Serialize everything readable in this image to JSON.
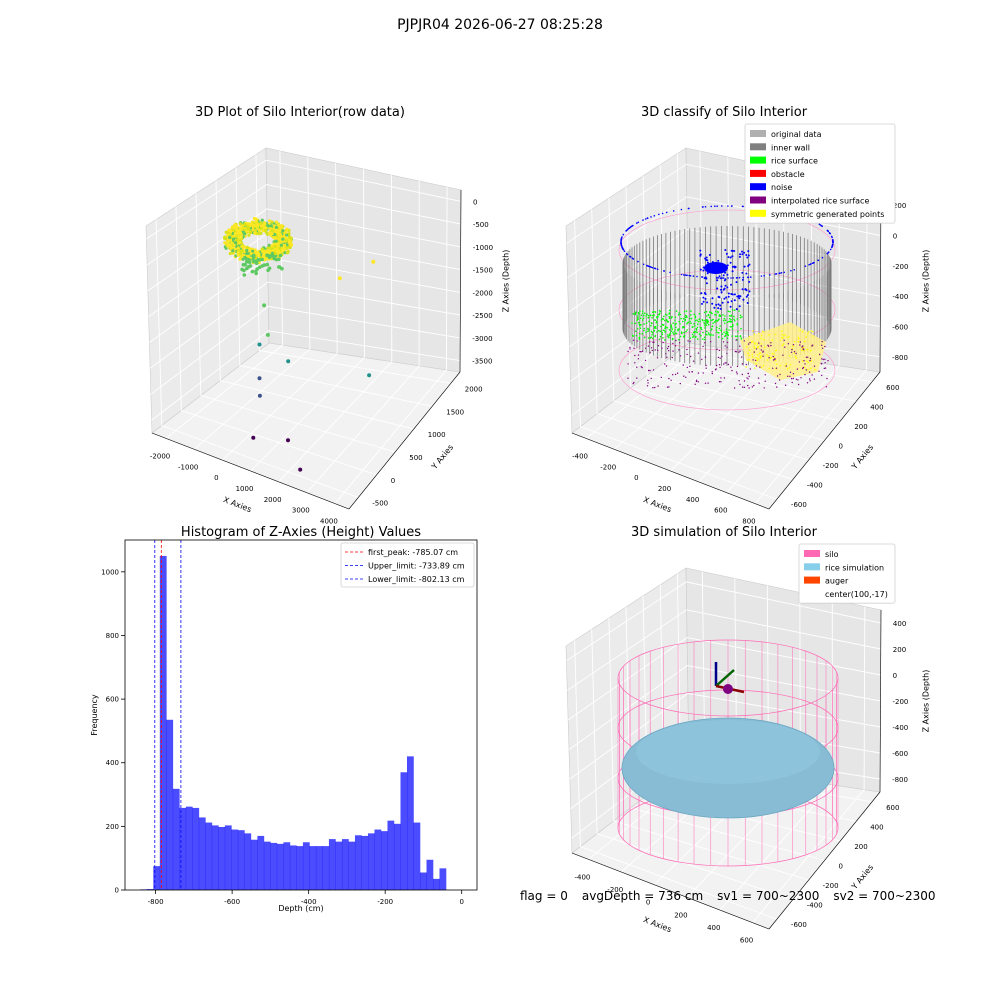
{
  "figure_title": "PJPJR04 2026-06-27 08:25:28",
  "status_bar": {
    "flag": "flag = 0",
    "avg_depth": "avgDepth = 736 cm",
    "sv1": "sv1 = 700~2300",
    "sv2": "sv2 = 700~2300"
  },
  "chart_data": [
    {
      "type": "scatter",
      "projection": "3d",
      "title": "3D Plot of Silo Interior(row data)",
      "xlabel": "X Axies",
      "ylabel": "Y Axies",
      "zlabel": "Z Axies (Depth)",
      "xticks": [
        "-2000",
        "-1000",
        "0",
        "1000",
        "2000",
        "3000",
        "4000"
      ],
      "yticks": [
        "-500",
        "0",
        "500",
        "1000",
        "1500",
        "2000"
      ],
      "zticks": [
        "0",
        "-500",
        "-1000",
        "-1500",
        "-2000",
        "-2500",
        "-3000",
        "-3500"
      ],
      "colormap": [
        "#440154",
        "#3b528b",
        "#21918c",
        "#5ec962",
        "#fde725"
      ],
      "outlier_points": [
        {
          "x": 2100,
          "y": 900,
          "z": -1000
        },
        {
          "x": 2900,
          "y": 1200,
          "z": -800
        },
        {
          "x": 3500,
          "y": 600,
          "z": -2600
        },
        {
          "x": 1600,
          "y": -100,
          "z": -2000
        },
        {
          "x": 200,
          "y": 300,
          "z": -1400
        },
        {
          "x": 600,
          "y": 100,
          "z": -1800
        },
        {
          "x": -300,
          "y": 500,
          "z": -2500
        },
        {
          "x": 400,
          "y": 0,
          "z": -2700
        },
        {
          "x": 100,
          "y": 200,
          "z": -3300
        },
        {
          "x": 700,
          "y": -400,
          "z": -3600
        },
        {
          "x": 1800,
          "y": -300,
          "z": -3500
        },
        {
          "x": 2500,
          "y": -500,
          "z": -3800
        }
      ],
      "grid": true
    },
    {
      "type": "scatter",
      "projection": "3d",
      "title": "3D classify of Silo Interior",
      "xlabel": "X Axies",
      "ylabel": "Y Axies",
      "zlabel": "Z Axies (Depth)",
      "xticks": [
        "-400",
        "-200",
        "0",
        "200",
        "400",
        "600",
        "800"
      ],
      "yticks": [
        "-600",
        "-400",
        "-200",
        "0",
        "200",
        "400",
        "600"
      ],
      "zticks": [
        "200",
        "0",
        "-200",
        "-400",
        "-600",
        "-800"
      ],
      "legend": [
        {
          "label": "original data",
          "color": "#b0b0b0"
        },
        {
          "label": "inner wall",
          "color": "#808080"
        },
        {
          "label": "rice surface",
          "color": "#00ff00"
        },
        {
          "label": "obstacle",
          "color": "#ff0000"
        },
        {
          "label": "noise",
          "color": "#0000ff"
        },
        {
          "label": "interpolated rice surface",
          "color": "#800080"
        },
        {
          "label": "symmetric generated points",
          "color": "#ffff00"
        }
      ],
      "legend_loc": "upper right",
      "grid": true
    },
    {
      "type": "bar",
      "title": "Histogram of Z-Axies (Height) Values",
      "xlabel": "Depth (cm)",
      "ylabel": "Frequency",
      "xlim": [
        -880,
        40
      ],
      "ylim": [
        0,
        1100
      ],
      "xticks": [
        -800,
        -600,
        -400,
        -200,
        0
      ],
      "xtick_labels": [
        "-800",
        "-600",
        "-400",
        "-200",
        "0"
      ],
      "yticks": [
        0,
        200,
        400,
        600,
        800,
        1000
      ],
      "bin_start": -840,
      "bin_width": 17,
      "values": [
        2,
        3,
        75,
        1050,
        535,
        318,
        258,
        262,
        258,
        228,
        212,
        203,
        198,
        203,
        190,
        188,
        178,
        158,
        170,
        152,
        148,
        145,
        150,
        140,
        138,
        150,
        138,
        138,
        138,
        160,
        152,
        160,
        152,
        172,
        170,
        178,
        190,
        185,
        218,
        208,
        370,
        420,
        212,
        55,
        95,
        35,
        68
      ],
      "bar_color": "#0000ff",
      "vlines": [
        {
          "label": "first_peak: -785.07 cm",
          "x": -785.07,
          "color": "#ff0000"
        },
        {
          "label": "Upper_limit: -733.89 cm",
          "x": -733.89,
          "color": "#0000ff"
        },
        {
          "label": "Lower_limit: -802.13 cm",
          "x": -802.13,
          "color": "#0000ff"
        }
      ],
      "legend_loc": "upper right"
    },
    {
      "type": "surface",
      "projection": "3d",
      "title": "3D simulation of Silo Interior",
      "xlabel": "X Axies",
      "ylabel": "Y Axies",
      "zlabel": "Z Axies (Depth)",
      "xticks": [
        "-400",
        "-200",
        "0",
        "200",
        "400",
        "600"
      ],
      "yticks": [
        "-600",
        "-400",
        "-200",
        "0",
        "200",
        "400",
        "600"
      ],
      "zticks": [
        "400",
        "200",
        "0",
        "-200",
        "-400",
        "-600",
        "-800"
      ],
      "legend": [
        {
          "label": "silo",
          "color": "#ff69b4"
        },
        {
          "label": "rice simulation",
          "color": "#87ceeb"
        },
        {
          "label": "auger",
          "color": "#ff4500"
        },
        {
          "label": "center(100,-17)",
          "color": "none"
        }
      ],
      "legend_loc": "upper right",
      "grid": true
    }
  ]
}
